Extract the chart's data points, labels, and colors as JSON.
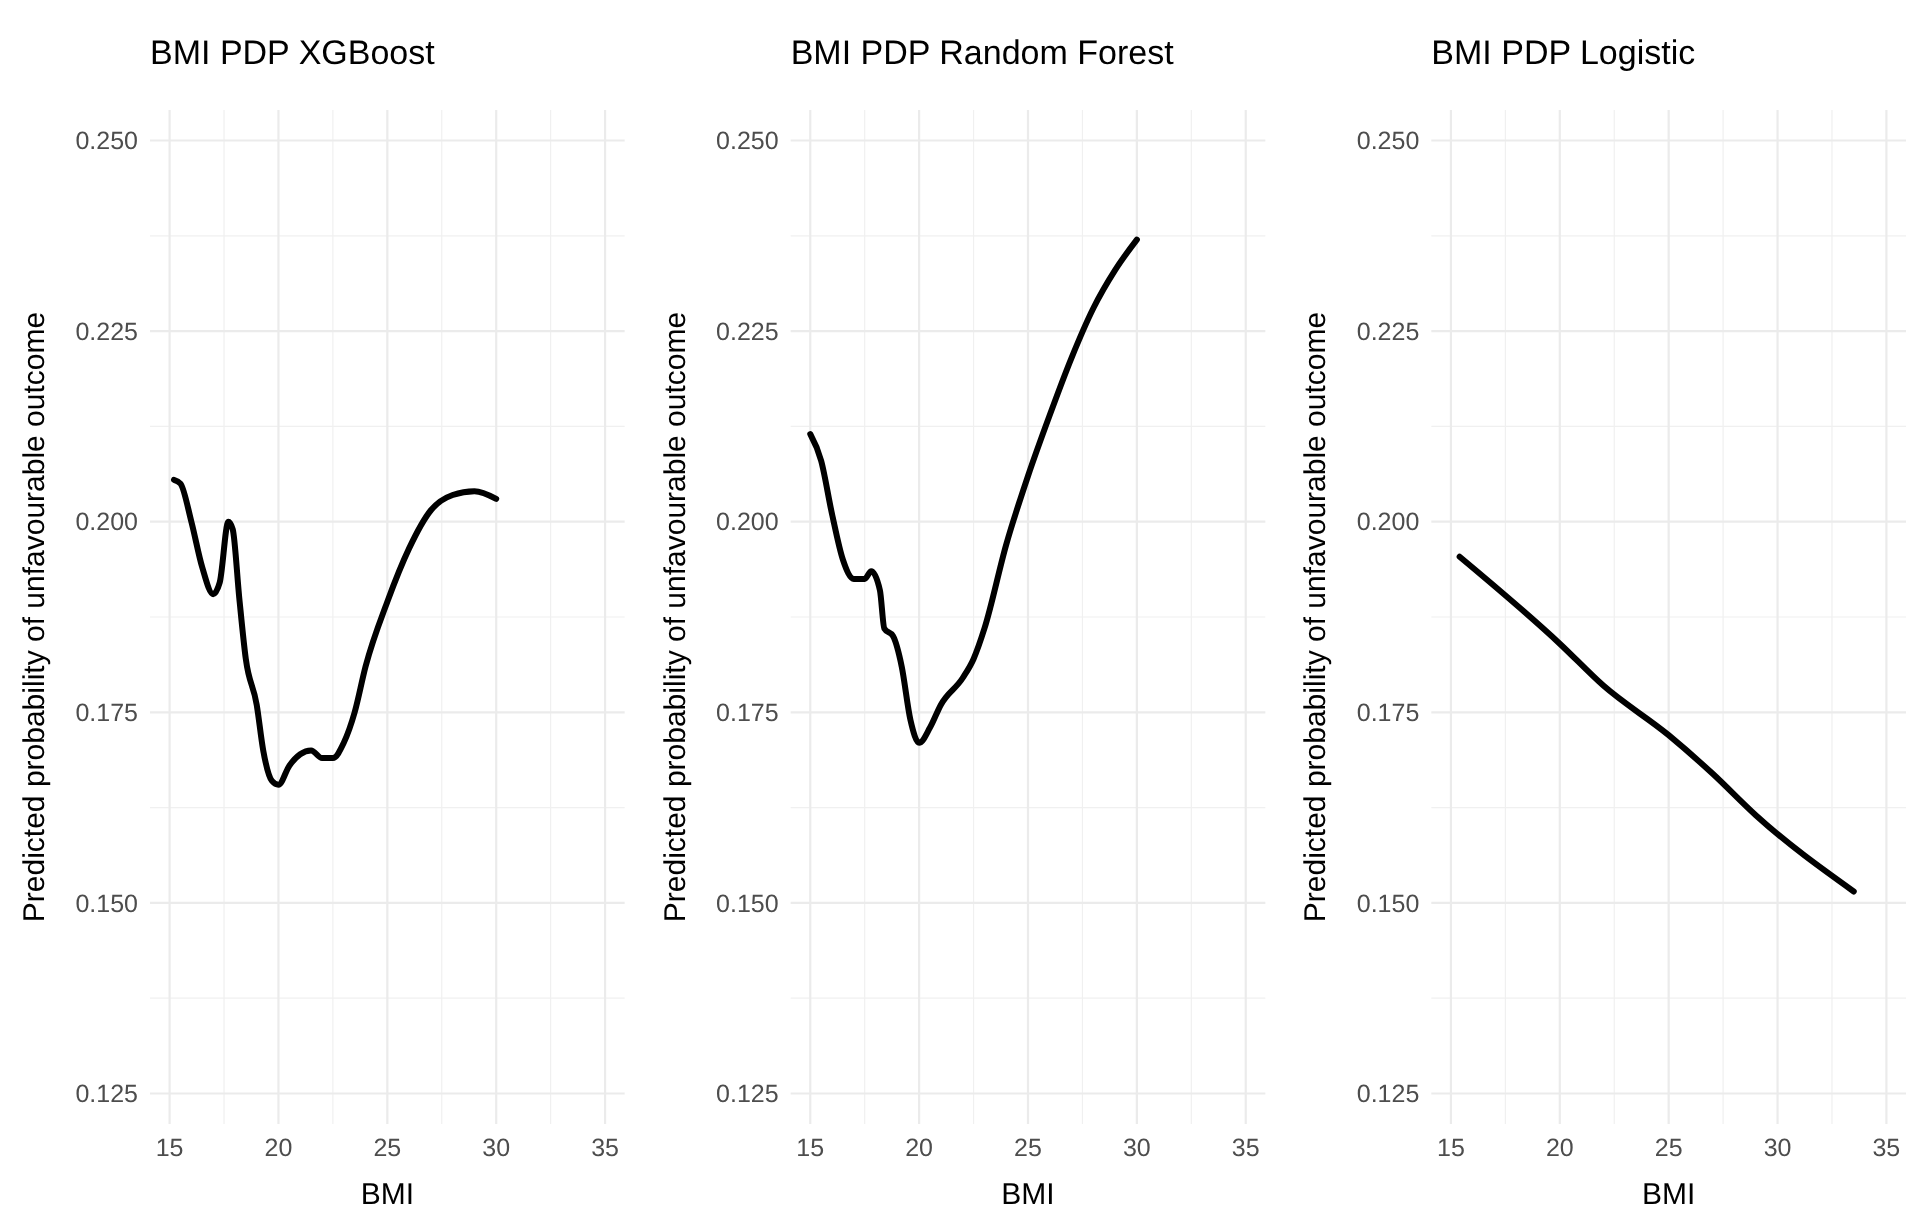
{
  "chart_data": [
    {
      "type": "line",
      "title": "BMI PDP XGBoost",
      "xlabel": "BMI",
      "ylabel": "Predicted probability of unfavourable outcome",
      "xlim": [
        14.1,
        35.9
      ],
      "ylim": [
        0.121,
        0.254
      ],
      "xticks": [
        15,
        20,
        25,
        30,
        35
      ],
      "yticks": [
        {
          "value": 0.125,
          "label": "0.125"
        },
        {
          "value": 0.15,
          "label": "0.150"
        },
        {
          "value": 0.175,
          "label": "0.175"
        },
        {
          "value": 0.2,
          "label": "0.200"
        },
        {
          "value": 0.225,
          "label": "0.225"
        },
        {
          "value": 0.25,
          "label": "0.250"
        }
      ],
      "grid": true,
      "series": [
        {
          "color": "#000000",
          "x": [
            15.2,
            15.5,
            16,
            16.5,
            17,
            17.3,
            17.7,
            17.9,
            18.2,
            18.5,
            19,
            19.3,
            19.7,
            20,
            20.5,
            21,
            21.5,
            22,
            22.5,
            23,
            23.5,
            24,
            25,
            26,
            27,
            28,
            29,
            30
          ],
          "values": [
            0.2055,
            0.205,
            0.2,
            0.194,
            0.1905,
            0.192,
            0.2,
            0.199,
            0.19,
            0.182,
            0.176,
            0.17,
            0.166,
            0.1655,
            0.168,
            0.1695,
            0.17,
            0.169,
            0.169,
            0.171,
            0.175,
            0.181,
            0.1895,
            0.1965,
            0.2015,
            0.2035,
            0.204,
            0.203
          ]
        }
      ]
    },
    {
      "type": "line",
      "title": "BMI PDP Random Forest",
      "xlabel": "BMI",
      "ylabel": "Predicted probability of unfavourable outcome",
      "xlim": [
        14.1,
        35.9
      ],
      "ylim": [
        0.121,
        0.254
      ],
      "xticks": [
        15,
        20,
        25,
        30,
        35
      ],
      "yticks": [
        {
          "value": 0.125,
          "label": "0.125"
        },
        {
          "value": 0.15,
          "label": "0.150"
        },
        {
          "value": 0.175,
          "label": "0.175"
        },
        {
          "value": 0.2,
          "label": "0.200"
        },
        {
          "value": 0.225,
          "label": "0.225"
        },
        {
          "value": 0.25,
          "label": "0.250"
        }
      ],
      "grid": true,
      "series": [
        {
          "color": "#000000",
          "x": [
            15,
            15.5,
            16,
            16.5,
            17,
            17.5,
            17.8,
            18.2,
            18.4,
            18.8,
            19.2,
            19.6,
            20,
            20.5,
            21,
            22,
            22.5,
            23,
            24,
            25,
            26,
            27,
            28,
            29,
            30
          ],
          "values": [
            0.2115,
            0.208,
            0.201,
            0.195,
            0.1925,
            0.1925,
            0.1935,
            0.191,
            0.186,
            0.185,
            0.181,
            0.174,
            0.171,
            0.173,
            0.176,
            0.1795,
            0.182,
            0.186,
            0.197,
            0.206,
            0.214,
            0.2215,
            0.228,
            0.233,
            0.237
          ]
        }
      ]
    },
    {
      "type": "line",
      "title": "BMI PDP Logistic",
      "xlabel": "BMI",
      "ylabel": "Predicted probability of unfavourable outcome",
      "xlim": [
        14.1,
        35.9
      ],
      "ylim": [
        0.121,
        0.254
      ],
      "xticks": [
        15,
        20,
        25,
        30,
        35
      ],
      "yticks": [
        {
          "value": 0.125,
          "label": "0.125"
        },
        {
          "value": 0.15,
          "label": "0.150"
        },
        {
          "value": 0.175,
          "label": "0.175"
        },
        {
          "value": 0.2,
          "label": "0.200"
        },
        {
          "value": 0.225,
          "label": "0.225"
        },
        {
          "value": 0.25,
          "label": "0.250"
        }
      ],
      "grid": true,
      "series": [
        {
          "color": "#000000",
          "x": [
            15.4,
            20,
            22,
            25,
            27,
            29,
            33.5
          ],
          "values": [
            0.1954,
            0.184,
            0.1785,
            0.172,
            0.167,
            0.1615,
            0.1515
          ]
        }
      ]
    }
  ]
}
